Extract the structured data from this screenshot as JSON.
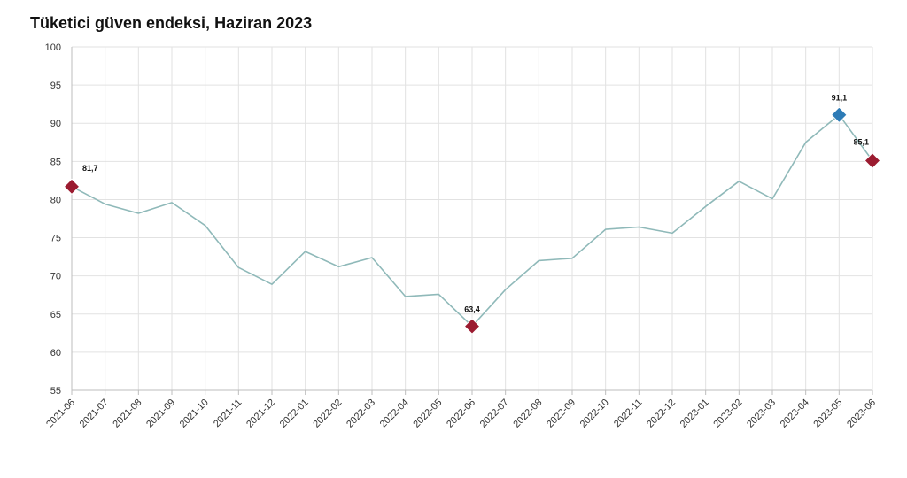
{
  "chart_data": {
    "type": "line",
    "title": "Tüketici güven endeksi, Haziran 2023",
    "xlabel": "",
    "ylabel": "",
    "ylim": [
      55,
      100
    ],
    "yticks": [
      55,
      60,
      65,
      70,
      75,
      80,
      85,
      90,
      95,
      100
    ],
    "grid": true,
    "legend": "none",
    "categories": [
      "2021-06",
      "2021-07",
      "2021-08",
      "2021-09",
      "2021-10",
      "2021-11",
      "2021-12",
      "2022-01",
      "2022-02",
      "2022-03",
      "2022-04",
      "2022-05",
      "2022-06",
      "2022-07",
      "2022-08",
      "2022-09",
      "2022-10",
      "2022-11",
      "2022-12",
      "2023-01",
      "2023-02",
      "2023-03",
      "2023-04",
      "2023-05",
      "2023-06"
    ],
    "series": [
      {
        "values": [
          81.7,
          79.4,
          78.2,
          79.6,
          76.6,
          71.1,
          68.9,
          73.2,
          71.2,
          72.4,
          67.3,
          67.6,
          63.4,
          68.2,
          72.0,
          72.3,
          76.1,
          76.4,
          75.6,
          79.1,
          82.4,
          80.1,
          87.5,
          91.1,
          85.1
        ],
        "color": "#8fb9b9"
      }
    ],
    "annotations": [
      {
        "category": "2021-06",
        "value": 81.7,
        "label": "81,7",
        "color": "#9b1b30"
      },
      {
        "category": "2022-06",
        "value": 63.4,
        "label": "63,4",
        "color": "#9b1b30"
      },
      {
        "category": "2023-05",
        "value": 91.1,
        "label": "91,1",
        "color": "#2d7bb6"
      },
      {
        "category": "2023-06",
        "value": 85.1,
        "label": "85,1",
        "color": "#9b1b30"
      }
    ],
    "colors": {
      "grid": "#e2e2e2",
      "axis": "#bdbdbd",
      "line": "#8fb9b9"
    }
  }
}
